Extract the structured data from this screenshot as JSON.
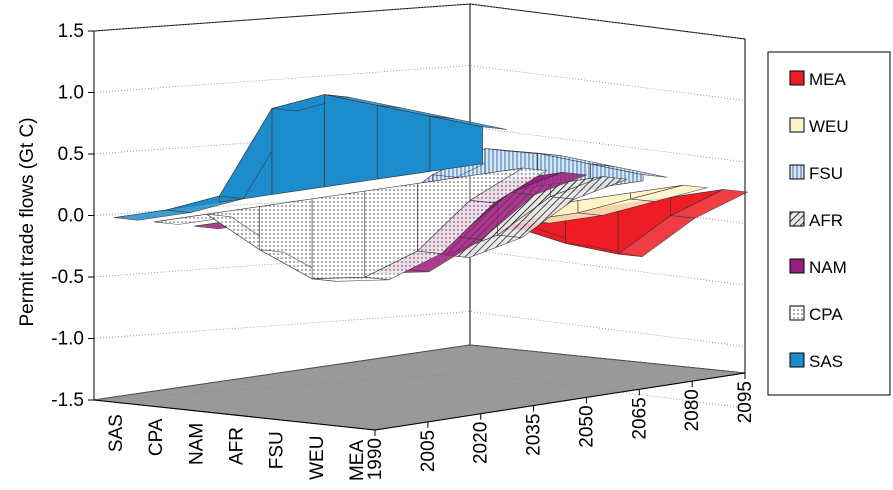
{
  "chart_data": {
    "type": "area",
    "subtype": "3d-surface-ribbons",
    "xlabel": "",
    "ylabel": "Permit trade flows (Gt C)",
    "ylim": [
      -1.5,
      1.5
    ],
    "yticks": [
      "1.5",
      "1.0",
      "0.5",
      "0.0",
      "-0.5",
      "-1.0",
      "-1.5"
    ],
    "ytick_values": [
      1.5,
      1.0,
      0.5,
      0.0,
      -0.5,
      -1.0,
      -1.5
    ],
    "x_ticks": [
      "1990",
      "2005",
      "2020",
      "2035",
      "2050",
      "2065",
      "2080",
      "2095"
    ],
    "depth_ticks": [
      "SAS",
      "CPA",
      "NAM",
      "AFR",
      "FSU",
      "WEU",
      "MEA"
    ],
    "x": [
      1990,
      2005,
      2020,
      2035,
      2050,
      2065,
      2080,
      2095
    ],
    "grid": true,
    "legend_position": "right",
    "legend": [
      {
        "label": "MEA",
        "color": "#ee1c24",
        "pattern": "solid"
      },
      {
        "label": "WEU",
        "color": "#fff4c8",
        "pattern": "solid"
      },
      {
        "label": "FSU",
        "color": "#c8def4",
        "pattern": "vertical-lines"
      },
      {
        "label": "AFR",
        "color": "#888888",
        "pattern": "diagonal-hatch"
      },
      {
        "label": "NAM",
        "color": "#9b1d7b",
        "pattern": "solid"
      },
      {
        "label": "CPA",
        "color": "#ffffff",
        "pattern": "dots"
      },
      {
        "label": "SAS",
        "color": "#1d8ccc",
        "pattern": "solid"
      }
    ],
    "series": [
      {
        "name": "SAS",
        "values": [
          0.0,
          0.0,
          0.05,
          0.7,
          0.75,
          0.6,
          0.45,
          0.3
        ]
      },
      {
        "name": "CPA",
        "values": [
          0.0,
          0.0,
          -0.35,
          -0.65,
          -0.7,
          -0.55,
          -0.2,
          0.0
        ]
      },
      {
        "name": "NAM",
        "values": [
          0.0,
          0.0,
          -0.3,
          -0.55,
          -0.6,
          -0.4,
          -0.1,
          0.0
        ]
      },
      {
        "name": "AFR",
        "values": [
          0.0,
          0.0,
          0.0,
          -0.3,
          -0.45,
          -0.35,
          -0.1,
          0.0
        ]
      },
      {
        "name": "FSU",
        "values": [
          0.0,
          0.0,
          0.05,
          0.3,
          0.45,
          0.35,
          0.2,
          0.05
        ]
      },
      {
        "name": "WEU",
        "values": [
          0.0,
          0.0,
          0.0,
          -0.05,
          -0.1,
          -0.1,
          -0.05,
          0.0
        ]
      },
      {
        "name": "MEA",
        "values": [
          0.0,
          0.0,
          0.0,
          -0.05,
          -0.25,
          -0.4,
          -0.15,
          0.0
        ]
      }
    ]
  }
}
